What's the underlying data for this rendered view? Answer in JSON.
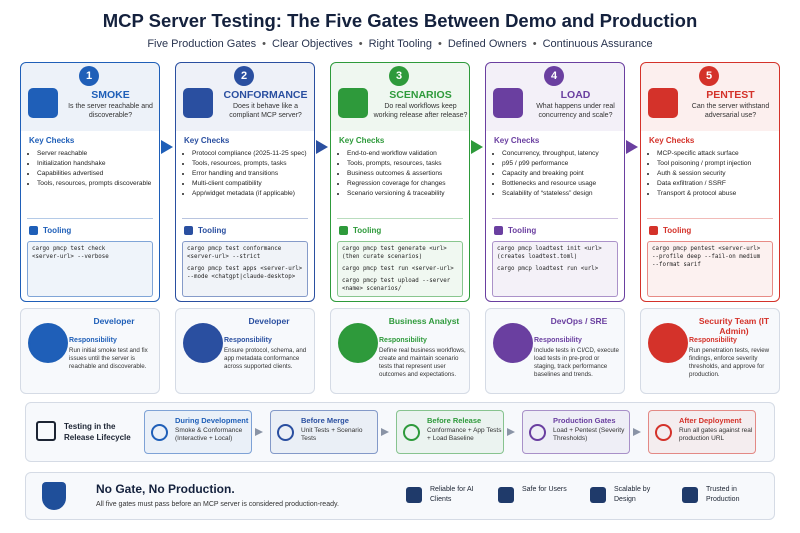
{
  "header": {
    "title": "MCP Server Testing: The Five Gates Between Demo and Production",
    "subtitle": [
      "Five Production Gates",
      "Clear Objectives",
      "Right Tooling",
      "Defined Owners",
      "Continuous Assurance"
    ]
  },
  "gates": [
    {
      "number": "1",
      "name": "SMOKE",
      "color": "#1f5fb8",
      "question": "Is the server reachable and discoverable?",
      "checks_label": "Key Checks",
      "checks": [
        "Server reachable",
        "Initialization handshake",
        "Capabilities advertised",
        "Tools, resources, prompts discoverable"
      ],
      "tooling_label": "Tooling",
      "commands": [
        [
          "cargo pmcp test check",
          "<server-url> --verbose"
        ]
      ],
      "owner": {
        "role": "Developer",
        "responsibility_label": "Responsibility",
        "responsibility": "Run initial smoke test and fix issues until the server is reachable and discoverable."
      }
    },
    {
      "number": "2",
      "name": "CONFORMANCE",
      "color": "#2a4fa0",
      "question": "Does it behave like a compliant MCP server?",
      "checks_label": "Key Checks",
      "checks": [
        "Protocol compliance (2025-11-25 spec)",
        "Tools, resources, prompts, tasks",
        "Error handling and transitions",
        "Multi-client compatibility",
        "App/widget metadata (if applicable)"
      ],
      "tooling_label": "Tooling",
      "commands": [
        [
          "cargo pmcp test conformance",
          "<server-url> --strict"
        ],
        [
          "cargo pmcp test apps <server-url>",
          "--mode <chatgpt|claude-desktop>"
        ]
      ],
      "owner": {
        "role": "Developer",
        "responsibility_label": "Responsibility",
        "responsibility": "Ensure protocol, schema, and app metadata conformance across supported clients."
      }
    },
    {
      "number": "3",
      "name": "SCENARIOS",
      "color": "#2e9a3b",
      "question": "Do real workflows keep working release after release?",
      "checks_label": "Key Checks",
      "checks": [
        "End-to-end workflow validation",
        "Tools, prompts, resources, tasks",
        "Business outcomes & assertions",
        "Regression coverage for changes",
        "Scenario versioning & traceability"
      ],
      "tooling_label": "Tooling",
      "commands": [
        [
          "cargo pmcp test generate <url>",
          "(then curate scenarios)"
        ],
        [
          "cargo pmcp test run <server-url>"
        ],
        [
          "cargo pmcp test upload --server",
          "<name> scenarios/"
        ]
      ],
      "owner": {
        "role": "Business Analyst",
        "responsibility_label": "Responsibility",
        "responsibility": "Define real business workflows, create and maintain scenario tests that represent user outcomes and expectations."
      }
    },
    {
      "number": "4",
      "name": "LOAD",
      "color": "#6a3fa0",
      "question": "What happens under real concurrency and scale?",
      "checks_label": "Key Checks",
      "checks": [
        "Concurrency, throughput, latency",
        "p95 / p99 performance",
        "Capacity and breaking point",
        "Bottlenecks and resource usage",
        "Scalability of “stateless” design"
      ],
      "tooling_label": "Tooling",
      "commands": [
        [
          "cargo pmcp loadtest init <url>",
          "(creates loadtest.toml)"
        ],
        [
          "cargo pmcp loadtest run <url>"
        ]
      ],
      "owner": {
        "role": "DevOps / SRE",
        "responsibility_label": "Responsibility",
        "responsibility": "Include tests in CI/CD, execute load tests in pre-prod or staging, track performance baselines and trends."
      }
    },
    {
      "number": "5",
      "name": "PENTEST",
      "color": "#d4322a",
      "question": "Can the server withstand adversarial use?",
      "checks_label": "Key Checks",
      "checks": [
        "MCP-specific attack surface",
        "Tool poisoning / prompt injection",
        "Auth & session security",
        "Data exfiltration / SSRF",
        "Transport & protocol abuse"
      ],
      "tooling_label": "Tooling",
      "commands": [
        [
          "cargo pmcp pentest <server-url>",
          "--profile deep --fail-on medium",
          "--format sarif"
        ]
      ],
      "owner": {
        "role": "Security Team (IT Admin)",
        "responsibility_label": "Responsibility",
        "responsibility": "Run penetration tests, review findings, enforce severity thresholds, and approve for production."
      }
    }
  ],
  "lifecycle": {
    "label": "Testing in the Release Lifecycle",
    "stages": [
      {
        "title": "During Development",
        "text": "Smoke & Conformance (Interactive + Local)",
        "color": "#1f5fb8"
      },
      {
        "title": "Before Merge",
        "text": "Unit Tests + Scenario Tests",
        "color": "#2a4fa0"
      },
      {
        "title": "Before Release",
        "text": "Conformance + App Tests + Load Baseline",
        "color": "#2e9a3b"
      },
      {
        "title": "Production Gates",
        "text": "Load + Pentest (Severity Thresholds)",
        "color": "#6a3fa0"
      },
      {
        "title": "After Deployment",
        "text": "Run all gates against real production URL",
        "color": "#d4322a"
      }
    ]
  },
  "footer": {
    "title": "No Gate, No Production.",
    "text": "All five gates must pass before an MCP server is considered production-ready.",
    "badges": [
      "Reliable for AI Clients",
      "Safe for Users",
      "Scalable by Design",
      "Trusted in Production"
    ]
  }
}
